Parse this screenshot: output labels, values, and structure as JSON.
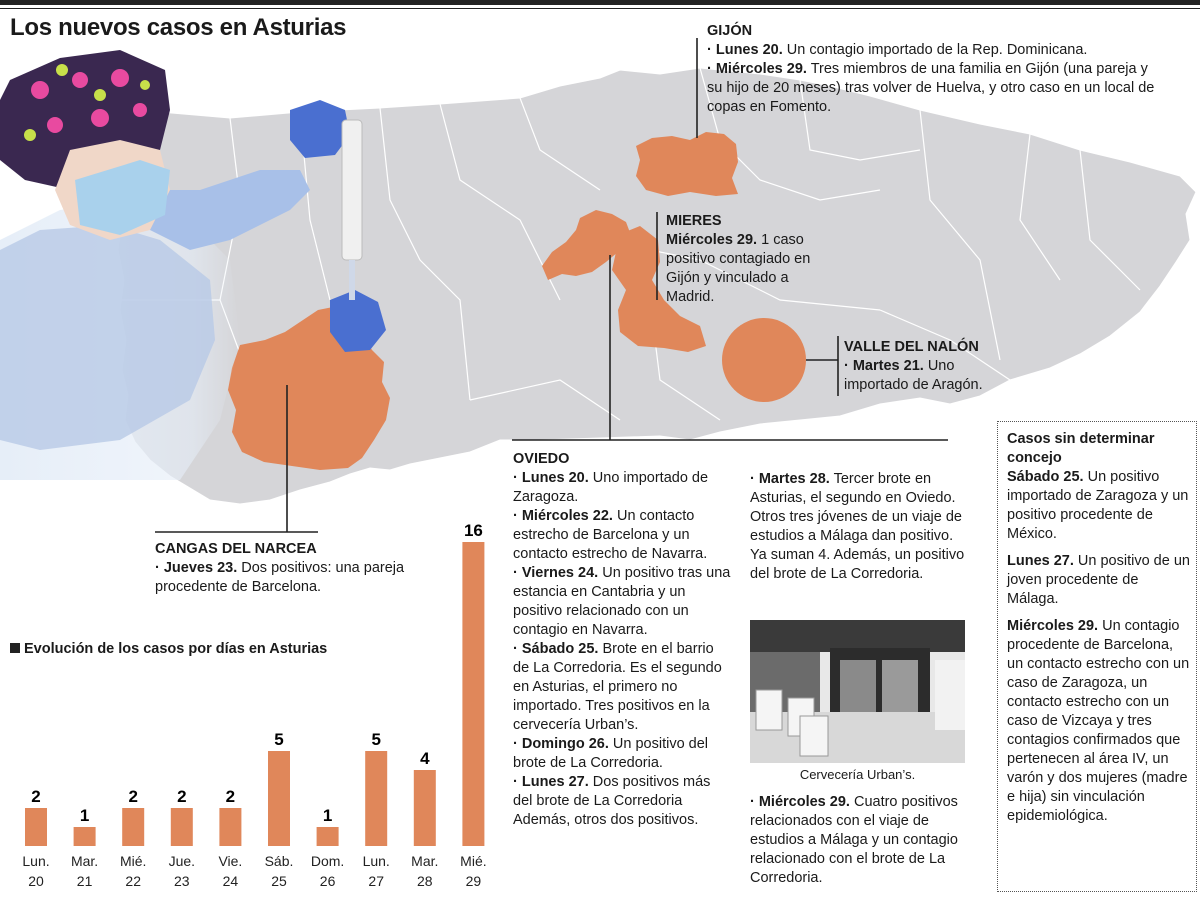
{
  "header": {
    "title": "Los nuevos casos en Asturias"
  },
  "gijon": {
    "title": "GIJÓN",
    "items": [
      {
        "day": "· Lunes 20.",
        "text": " Un contagio importado de la Rep. Dominicana."
      },
      {
        "day": "· Miércoles 29.",
        "text": " Tres miembros de una familia en Gijón (una pareja y su hijo de 20 meses) tras volver de Huelva, y otro caso en un local de copas en Fomento."
      }
    ]
  },
  "mieres": {
    "title": "MIERES",
    "items": [
      {
        "day": "Miércoles 29.",
        "text": " 1 caso positivo contagiado en Gijón y vinculado a Madrid."
      }
    ]
  },
  "nalon": {
    "title": "VALLE DEL NALÓN",
    "items": [
      {
        "day": "· Martes 21.",
        "text": " Uno importado de Aragón."
      }
    ]
  },
  "cangas": {
    "title": "CANGAS DEL NARCEA",
    "items": [
      {
        "day": "· Jueves 23.",
        "text": " Dos positivos: una pareja procedente de Barcelona."
      }
    ]
  },
  "oviedo": {
    "title": "OVIEDO",
    "col1": [
      {
        "day": "· Lunes 20.",
        "text": " Uno importado de Zaragoza."
      },
      {
        "day": "· Miércoles 22.",
        "text": " Un contacto estrecho de Barcelona y un contacto estrecho de Navarra."
      },
      {
        "day": "· Viernes 24.",
        "text": " Un positivo tras una estancia en Cantabria y un positivo relacionado con un contagio en Navarra."
      },
      {
        "day": "· Sábado 25.",
        "text": " Brote en el barrio de La Corredoria. Es el segundo en Asturias, el primero no importado. Tres positivos en la cervecería Urban’s."
      },
      {
        "day": "· Domingo 26.",
        "text": " Un positivo del brote de La Corredoria."
      },
      {
        "day": "· Lunes 27.",
        "text": " Dos positivos más del brote de La Corredoria Además, otros dos positivos."
      }
    ],
    "col2": [
      {
        "day": "· Martes 28.",
        "text": " Tercer brote en Asturias, el segundo en Oviedo. Otros tres jóvenes de un viaje de estudios a Málaga dan positivo. Ya suman 4. Además, un positivo del brote de La Corredoria."
      }
    ],
    "col2b": [
      {
        "day": "· Miércoles 29.",
        "text": " Cuatro positivos relacionados con el viaje de estudios a Málaga y un contagio relacionado con el brote de La Corredoria."
      }
    ],
    "photo_caption": "Cervecería Urban’s."
  },
  "sin_concejo": {
    "title": "Casos sin determinar concejo",
    "items": [
      {
        "day": "Sábado 25.",
        "text": " Un positivo importado de Zaragoza y un positivo procedente de México."
      },
      {
        "day": "Lunes 27.",
        "text": " Un positivo de un joven procedente de Málaga."
      },
      {
        "day": "Miércoles 29.",
        "text": " Un contagio procedente de Barcelona, un contacto estrecho con un caso de Zaragoza, un contacto estrecho con un caso de Vizcaya y tres contagios confirmados que pertenecen al área IV, un varón y dos mujeres (madre e hija) sin vinculación epidemiológica."
      }
    ]
  },
  "colors": {
    "accent": "#e0875a",
    "map_gray": "#d5d5d8",
    "text": "#1a1a1a"
  },
  "chart_data": {
    "type": "bar",
    "title": "Evolución de los casos por días en Asturias",
    "categories": [
      [
        "Lun.",
        "20"
      ],
      [
        "Mar.",
        "21"
      ],
      [
        "Mié.",
        "22"
      ],
      [
        "Jue.",
        "23"
      ],
      [
        "Vie.",
        "24"
      ],
      [
        "Sáb.",
        "25"
      ],
      [
        "Dom.",
        "26"
      ],
      [
        "Lun.",
        "27"
      ],
      [
        "Mar.",
        "28"
      ],
      [
        "Mié.",
        "29"
      ]
    ],
    "values": [
      2,
      1,
      2,
      2,
      2,
      5,
      1,
      5,
      4,
      16
    ],
    "xlabel": "",
    "ylabel": "",
    "ylim": [
      0,
      16
    ],
    "grid": false,
    "bar_color": "#e0875a"
  }
}
